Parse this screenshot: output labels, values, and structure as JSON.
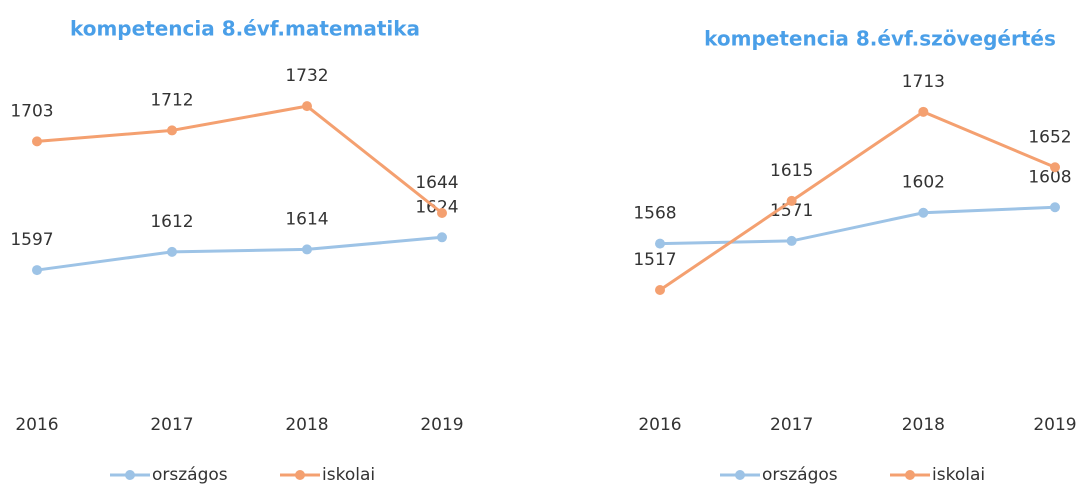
{
  "chart_data": [
    {
      "type": "line",
      "title": "kompetencia 8.évf.matematika",
      "categories": [
        "2016",
        "2017",
        "2018",
        "2019"
      ],
      "series": [
        {
          "name": "országos",
          "color": "#9dc3e6",
          "values": [
            1597,
            1612,
            1614,
            1624
          ]
        },
        {
          "name": "iskolai",
          "color": "#f4a070",
          "values": [
            1703,
            1712,
            1732,
            1644
          ]
        }
      ],
      "ylim": [
        1490,
        1770
      ],
      "legend": "bottom"
    },
    {
      "type": "line",
      "title": "kompetencia 8.évf.szövegértés",
      "categories": [
        "2016",
        "2017",
        "2018",
        "2019"
      ],
      "series": [
        {
          "name": "országos",
          "color": "#9dc3e6",
          "values": [
            1568,
            1571,
            1602,
            1608
          ]
        },
        {
          "name": "iskolai",
          "color": "#f4a070",
          "values": [
            1517,
            1615,
            1713,
            1652
          ]
        }
      ],
      "ylim": [
        1385,
        1770
      ],
      "legend": "bottom"
    }
  ]
}
